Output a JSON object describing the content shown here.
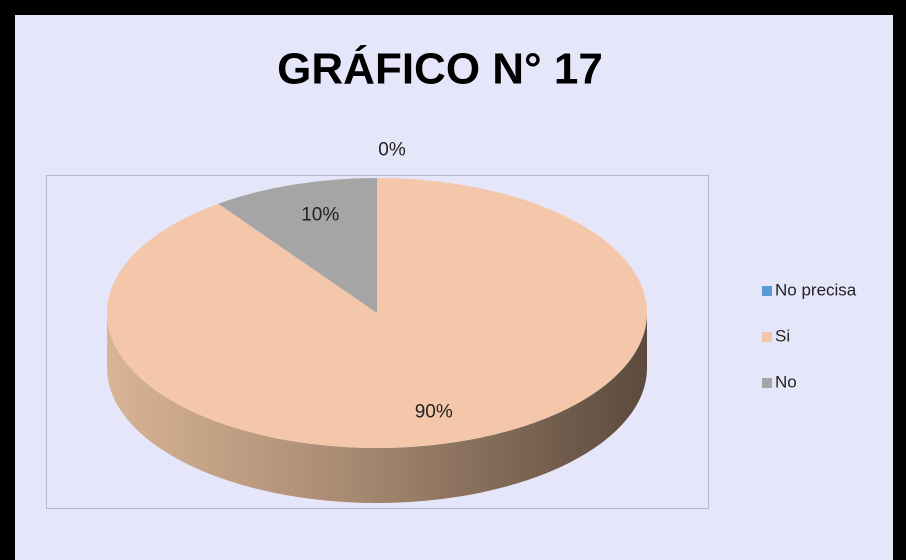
{
  "chart_data": {
    "type": "pie3d",
    "title": "GRÁFICO N° 17",
    "categories": [
      "No precisa",
      "Si",
      "No"
    ],
    "values": [
      0,
      90,
      10
    ],
    "value_labels": [
      "0%",
      "90%",
      "10%"
    ],
    "colors": [
      "#5b9bd5",
      "#f4c7ab",
      "#a5a5a5"
    ],
    "legend": "right"
  }
}
